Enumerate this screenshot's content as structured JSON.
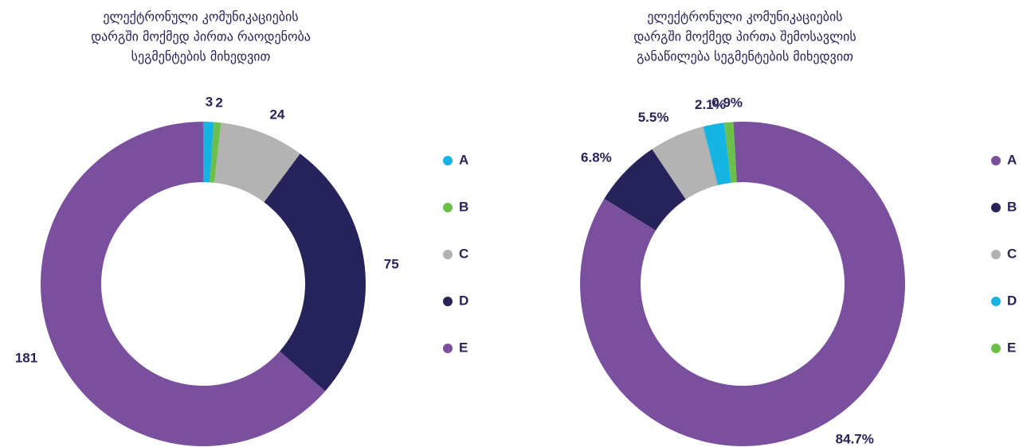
{
  "chart_data": [
    {
      "type": "donut",
      "title": [
        "ელექტრონული კომუნიკაციების",
        "დარგში მოქმედ პირთა რაოდენობა",
        "სეგმენტების მიხედვით"
      ],
      "categories": [
        "A",
        "B",
        "C",
        "D",
        "E"
      ],
      "values": [
        3,
        2,
        24,
        75,
        181
      ],
      "colors": [
        "#16b4e3",
        "#6cc04a",
        "#b3b3b3",
        "#26235a",
        "#7a4f9e"
      ]
    },
    {
      "type": "donut",
      "title": [
        "ელექტრონული კომუნიკაციების",
        "დარგში მოქმედ პირთა შემოსავლის",
        "განაწილება სეგმენტების მიხედვით"
      ],
      "categories": [
        "A",
        "B",
        "C",
        "D",
        "E"
      ],
      "values": [
        84.7,
        6.8,
        5.5,
        2.1,
        0.9
      ],
      "value_labels": [
        "84.7%",
        "6.8%",
        "5.5%",
        "2.1%",
        "0.9%"
      ],
      "colors": [
        "#7a4f9e",
        "#26235a",
        "#b3b3b3",
        "#16b4e3",
        "#6cc04a"
      ]
    }
  ]
}
